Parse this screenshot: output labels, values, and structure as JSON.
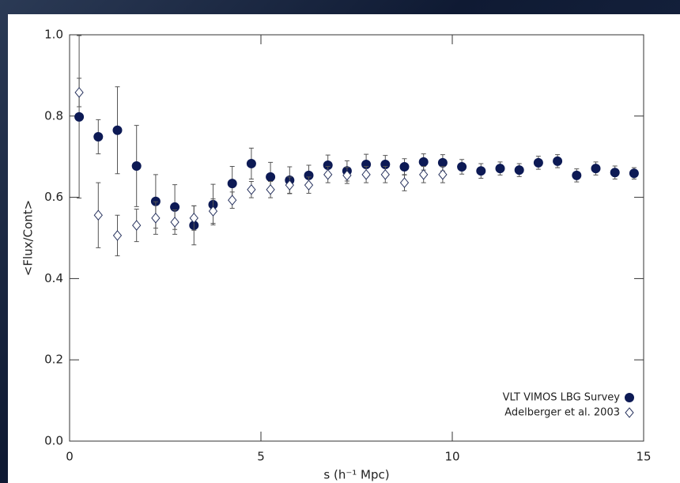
{
  "chart_data": {
    "type": "scatter",
    "x_label": "s (h⁻¹ Mpc)",
    "y_label": "<Flux/Cont>",
    "xlim": [
      0,
      15
    ],
    "ylim": [
      0,
      1
    ],
    "xticks": [
      0,
      5,
      10,
      15
    ],
    "yticks": [
      {
        "value": 0,
        "label": "0.0"
      },
      0.2,
      0.4,
      0.6,
      0.8,
      {
        "value": 1,
        "label": "1.0"
      }
    ],
    "legend": "lower right",
    "series": [
      {
        "name": "VLT VIMOS LBG Survey",
        "marker": "filled",
        "color": "#0d1a55",
        "x": [
          0.25,
          0.75,
          1.25,
          1.75,
          2.25,
          2.75,
          3.25,
          3.75,
          4.25,
          4.75,
          5.25,
          5.75,
          6.25,
          6.75,
          7.25,
          7.75,
          8.25,
          8.75,
          9.25,
          9.75,
          10.25,
          10.75,
          11.25,
          11.75,
          12.25,
          12.75,
          13.25,
          13.75,
          14.25,
          14.75
        ],
        "values": [
          0.798,
          0.749,
          0.765,
          0.677,
          0.59,
          0.576,
          0.531,
          0.582,
          0.634,
          0.683,
          0.65,
          0.642,
          0.654,
          0.679,
          0.665,
          0.681,
          0.681,
          0.675,
          0.687,
          0.685,
          0.675,
          0.665,
          0.671,
          0.667,
          0.685,
          0.689,
          0.654,
          0.671,
          0.661,
          0.659
        ],
        "errors": [
          0.2,
          0.042,
          0.107,
          0.1,
          0.066,
          0.055,
          0.048,
          0.05,
          0.042,
          0.038,
          0.036,
          0.033,
          0.025,
          0.025,
          0.025,
          0.025,
          0.022,
          0.02,
          0.02,
          0.02,
          0.018,
          0.018,
          0.016,
          0.016,
          0.016,
          0.016,
          0.016,
          0.016,
          0.016,
          0.014
        ]
      },
      {
        "name": "Adelberger et al. 2003",
        "marker": "open-diamond",
        "color": "#2a3560",
        "x": [
          0.25,
          0.75,
          1.25,
          1.75,
          2.25,
          2.75,
          3.25,
          3.75,
          4.25,
          4.75,
          5.25,
          5.75,
          6.25,
          6.75,
          7.25,
          7.75,
          8.25,
          8.75,
          9.25,
          9.75
        ],
        "values": [
          0.858,
          0.556,
          0.506,
          0.531,
          0.549,
          0.539,
          0.549,
          0.566,
          0.593,
          0.619,
          0.619,
          0.63,
          0.63,
          0.656,
          0.654,
          0.656,
          0.656,
          0.636,
          0.656,
          0.656
        ],
        "errors": [
          0.035,
          0.08,
          0.05,
          0.04,
          0.04,
          0.03,
          0.03,
          0.03,
          0.02,
          0.02,
          0.02,
          0.02,
          0.02,
          0.02,
          0.02,
          0.02,
          0.02,
          0.02,
          0.02,
          0.02
        ]
      }
    ]
  }
}
